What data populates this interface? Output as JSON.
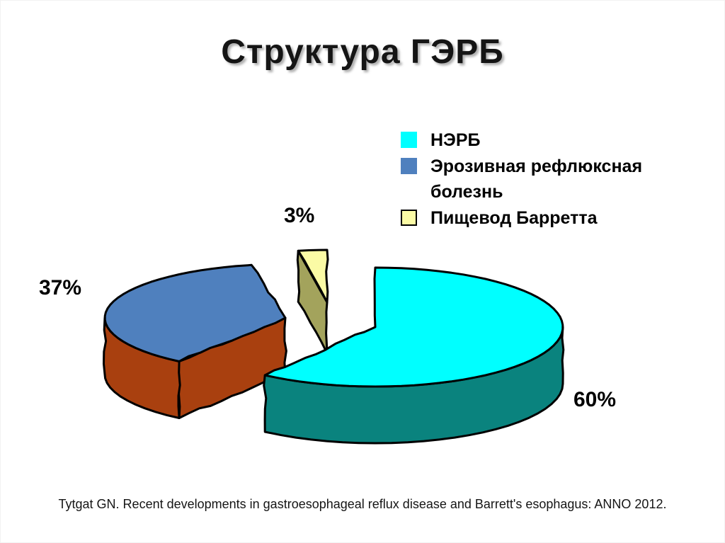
{
  "slide": {
    "title": "Структура ГЭРБ",
    "citation": "Tytgat GN. Recent developments in gastroesophageal reflux disease and Barrett's esophagus: ANNO 2012."
  },
  "chart_data": {
    "type": "pie",
    "style": "3d-exploded",
    "unit": "%",
    "title": "Структура ГЭРБ",
    "start_angle_deg": 0,
    "direction": "clockwise",
    "slices": [
      {
        "label": "НЭРБ",
        "value": 60,
        "pct_label": "60%",
        "top_color": "#00FFFF",
        "side_color": "#0A837E"
      },
      {
        "label": "Эрозивная рефлюксная болезнь",
        "value": 37,
        "pct_label": "37%",
        "top_color": "#4F80BE",
        "side_color": "#A9400F"
      },
      {
        "label": "Пищевод Барретта",
        "value": 3,
        "pct_label": "3%",
        "top_color": "#FBFBA5",
        "side_color": "#A3A35C"
      }
    ],
    "legend": {
      "position": "top-right",
      "items": [
        {
          "label": "НЭРБ",
          "color": "#00FFFF",
          "bordered": false
        },
        {
          "label": "Эрозивная рефлюксная болезнь",
          "color": "#4F80BE",
          "bordered": false
        },
        {
          "label": "Пищевод Барретта",
          "color": "#FBFBA5",
          "bordered": true
        }
      ]
    }
  }
}
